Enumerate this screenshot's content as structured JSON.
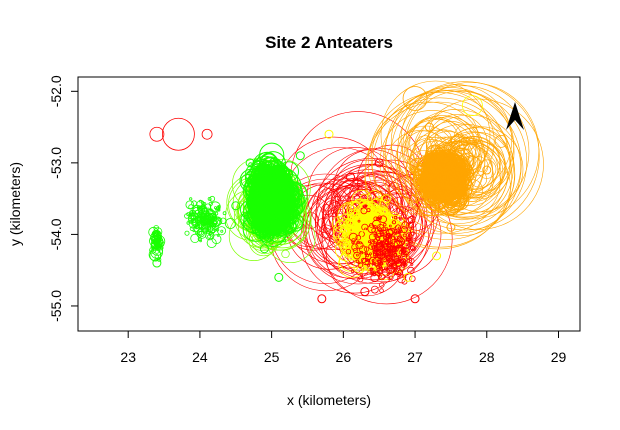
{
  "chart_data": {
    "type": "scatter",
    "title": "Site 2 Anteaters",
    "xlabel": "x (kilometers)",
    "ylabel": "y (kilometers)",
    "xlim": [
      22.3,
      29.3
    ],
    "ylim": [
      -55.35,
      -51.8
    ],
    "x_ticks": [
      "23",
      "24",
      "25",
      "26",
      "27",
      "28",
      "29"
    ],
    "y_ticks": [
      "-52.0",
      "-53.0",
      "-54.0",
      "-55.0"
    ],
    "marker": "open-circle",
    "north_arrow": "north-arrow-icon",
    "colors": {
      "green": "#19ff00",
      "lime": "#7dff00",
      "yellow": "#ffff00",
      "orange": "#ffa500",
      "red": "#ff0000",
      "frame": "#000000"
    },
    "series": [
      {
        "color": "#19ff00",
        "values": [
          {
            "x": 25.0,
            "y": -53.3
          },
          {
            "x": 24.7,
            "y": -53.0
          },
          {
            "x": 25.3,
            "y": -53.7
          },
          {
            "x": 24.9,
            "y": -54.2
          },
          {
            "x": 25.4,
            "y": -52.9
          },
          {
            "x": 24.5,
            "y": -53.6
          },
          {
            "x": 25.1,
            "y": -54.6
          },
          {
            "x": 23.4,
            "y": -54.0
          },
          {
            "x": 23.4,
            "y": -54.4
          }
        ]
      },
      {
        "color": "#ffff00",
        "values": [
          {
            "x": 26.3,
            "y": -54.0
          },
          {
            "x": 26.9,
            "y": -54.6
          },
          {
            "x": 25.8,
            "y": -52.6
          },
          {
            "x": 26.6,
            "y": -53.5
          },
          {
            "x": 27.3,
            "y": -54.3
          }
        ]
      },
      {
        "color": "#ffa500",
        "values": [
          {
            "x": 27.4,
            "y": -53.2
          },
          {
            "x": 27.7,
            "y": -52.7
          },
          {
            "x": 27.0,
            "y": -53.5
          },
          {
            "x": 27.5,
            "y": -53.9
          },
          {
            "x": 28.0,
            "y": -53.1
          },
          {
            "x": 27.2,
            "y": -52.5
          }
        ]
      },
      {
        "color": "#ff0000",
        "values": [
          {
            "x": 26.1,
            "y": -53.2
          },
          {
            "x": 26.8,
            "y": -54.1
          },
          {
            "x": 26.3,
            "y": -54.8
          },
          {
            "x": 25.7,
            "y": -54.9
          },
          {
            "x": 27.0,
            "y": -54.9
          },
          {
            "x": 26.5,
            "y": -53.0
          }
        ]
      }
    ]
  }
}
